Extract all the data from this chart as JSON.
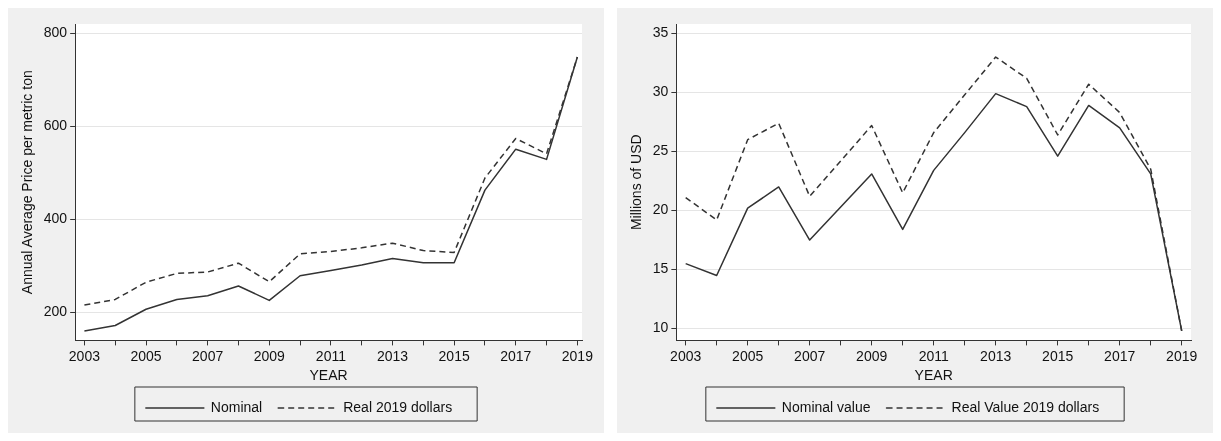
{
  "chart_data": [
    {
      "type": "line",
      "xlabel": "YEAR",
      "ylabel": "Annual Average Price per metric ton",
      "x": [
        2003,
        2004,
        2005,
        2006,
        2007,
        2008,
        2009,
        2010,
        2011,
        2012,
        2013,
        2014,
        2015,
        2016,
        2017,
        2018,
        2019
      ],
      "series": [
        {
          "name": "Nominal",
          "color": "#333333",
          "line_style": "solid",
          "values": [
            160,
            172,
            207,
            228,
            236,
            257,
            226,
            279,
            290,
            302,
            316,
            307,
            307,
            463,
            551,
            529,
            749
          ]
        },
        {
          "name": "Real 2019 dollars",
          "color": "#333333",
          "line_style": "dashed",
          "values": [
            216,
            228,
            265,
            284,
            287,
            306,
            266,
            326,
            331,
            339,
            349,
            333,
            329,
            489,
            574,
            541,
            749
          ]
        }
      ],
      "xlim": [
        2002.7,
        2019.15
      ],
      "xticks": [
        2003,
        {
          "value": 2004,
          "label": null
        },
        2005,
        {
          "value": 2006,
          "label": null
        },
        2007,
        {
          "value": 2008,
          "label": null
        },
        2009,
        {
          "value": 2010,
          "label": null
        },
        2011,
        {
          "value": 2012,
          "label": null
        },
        2013,
        {
          "value": 2014,
          "label": null
        },
        2015,
        {
          "value": 2016,
          "label": null
        },
        2017,
        {
          "value": 2018,
          "label": null
        },
        2019
      ],
      "ylim": [
        140,
        820
      ],
      "yticks": [
        200,
        400,
        600,
        800
      ],
      "grid": "y",
      "legend": "bottom",
      "marker": "none"
    },
    {
      "type": "line",
      "xlabel": "YEAR",
      "ylabel": "Millions of USD",
      "x": [
        2003,
        2004,
        2005,
        2006,
        2007,
        2008,
        2009,
        2010,
        2011,
        2012,
        2013,
        2014,
        2015,
        2016,
        2017,
        2018,
        2019
      ],
      "series": [
        {
          "name": "Nominal value",
          "color": "#333333",
          "line_style": "solid",
          "values": [
            15.5,
            14.5,
            20.2,
            22.0,
            17.5,
            20.3,
            23.1,
            18.4,
            23.4,
            26.6,
            29.9,
            28.8,
            24.6,
            28.9,
            27.0,
            23.1,
            9.8
          ]
        },
        {
          "name": "Real Value 2019 dollars",
          "color": "#333333",
          "line_style": "dashed",
          "values": [
            21.1,
            19.2,
            26.0,
            27.4,
            21.2,
            24.2,
            27.2,
            21.5,
            26.6,
            29.8,
            33.0,
            31.2,
            26.4,
            30.7,
            28.3,
            23.5,
            9.8
          ]
        }
      ],
      "xlim": [
        2002.7,
        2019.3
      ],
      "xticks": [
        2003,
        {
          "value": 2004,
          "label": null
        },
        2005,
        {
          "value": 2006,
          "label": null
        },
        2007,
        {
          "value": 2008,
          "label": null
        },
        2009,
        {
          "value": 2010,
          "label": null
        },
        2011,
        {
          "value": 2012,
          "label": null
        },
        2013,
        {
          "value": 2014,
          "label": null
        },
        2015,
        {
          "value": 2016,
          "label": null
        },
        2017,
        {
          "value": 2018,
          "label": null
        },
        2019
      ],
      "ylim": [
        9,
        35.8
      ],
      "yticks": [
        10,
        15,
        20,
        25,
        30,
        35
      ],
      "grid": "y",
      "legend": "bottom",
      "marker": "none"
    }
  ]
}
